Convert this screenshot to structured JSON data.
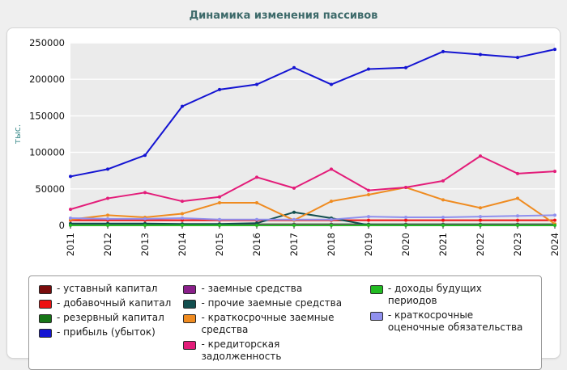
{
  "title": "Динамика изменения пассивов",
  "chart_data": {
    "type": "line",
    "title": "Динамика изменения пассивов",
    "xlabel": "",
    "ylabel": "тыс.",
    "ylim": [
      0,
      250000
    ],
    "ytick_step": 50000,
    "grid": "horizontal",
    "legend_position": "bottom",
    "legend_prefix": "- ",
    "categories": [
      "2011",
      "2012",
      "2013",
      "2014",
      "2015",
      "2016",
      "2017",
      "2018",
      "2019",
      "2020",
      "2021",
      "2022",
      "2023",
      "2024"
    ],
    "series": [
      {
        "name": "уставный капитал",
        "color": "#7a0c0c",
        "values": [
          300,
          300,
          300,
          300,
          300,
          300,
          300,
          300,
          300,
          300,
          300,
          300,
          300,
          300
        ]
      },
      {
        "name": "добавочный капитал",
        "color": "#ee1111",
        "values": [
          7000,
          7000,
          7000,
          7000,
          7000,
          7000,
          7000,
          7000,
          7000,
          7000,
          7000,
          7000,
          7000,
          7000
        ]
      },
      {
        "name": "резервный капитал",
        "color": "#167516",
        "values": [
          1500,
          1500,
          1500,
          1500,
          1500,
          1500,
          1500,
          1500,
          1500,
          1500,
          1500,
          1500,
          1500,
          1500
        ]
      },
      {
        "name": "прибыль (убыток)",
        "color": "#1414d2",
        "values": [
          67000,
          77000,
          96000,
          163000,
          186000,
          193000,
          216000,
          193000,
          214000,
          216000,
          238000,
          234000,
          230000,
          241000
        ]
      },
      {
        "name": "заемные средства",
        "color": "#8a1f8a",
        "values": [
          1000,
          1000,
          1000,
          1000,
          1000,
          1000,
          1000,
          1000,
          1000,
          1000,
          1000,
          1000,
          1000,
          1000
        ]
      },
      {
        "name": "прочие заемные средства",
        "color": "#124f4f",
        "values": [
          2500,
          2500,
          2500,
          2000,
          2000,
          3000,
          18000,
          10000,
          500,
          300,
          300,
          300,
          300,
          300
        ]
      },
      {
        "name": "краткосрочные заемные средства",
        "color": "#ef8b20",
        "values": [
          8000,
          14000,
          11000,
          16000,
          31000,
          31000,
          7000,
          33000,
          42000,
          52000,
          35000,
          24000,
          37000,
          2000
        ]
      },
      {
        "name": "кредиторская задолженность",
        "color": "#e31c79",
        "values": [
          22000,
          37000,
          45000,
          33000,
          39000,
          66000,
          51000,
          77000,
          48000,
          52000,
          61000,
          95000,
          71000,
          74000
        ]
      },
      {
        "name": "доходы будущих периодов",
        "color": "#22bb22",
        "values": [
          100,
          100,
          100,
          100,
          100,
          100,
          100,
          100,
          100,
          100,
          100,
          100,
          100,
          100
        ]
      },
      {
        "name": "краткосрочные оценочные обязательства",
        "color": "#9090ee",
        "values": [
          10000,
          9000,
          9000,
          10000,
          8000,
          8000,
          8000,
          8000,
          12000,
          11000,
          11000,
          12000,
          13000,
          14000
        ]
      }
    ],
    "legend_columns": [
      [
        0,
        1,
        2,
        3
      ],
      [
        4,
        5,
        6,
        7
      ],
      [
        8,
        9
      ]
    ]
  }
}
